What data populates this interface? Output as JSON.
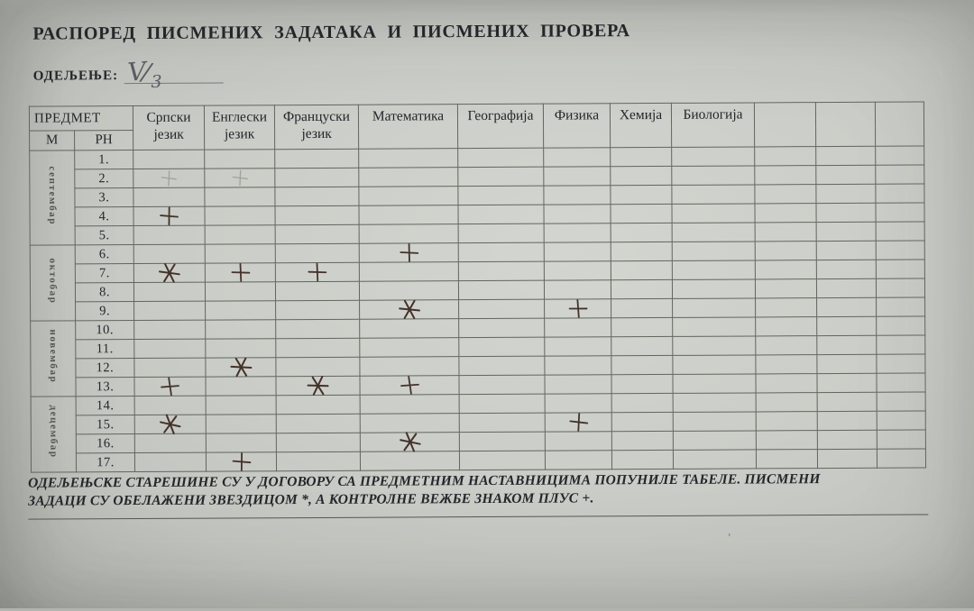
{
  "page": {
    "title": "РАСПОРЕД  ПИСМЕНИХ ЗАДАТАКА И ПИСМЕНИХ  ПРОВЕРА",
    "class_label": "ОДЕЉЕЊЕ:",
    "class_value": "V/3"
  },
  "table": {
    "corner_header": "ПРЕДМЕТ",
    "month_col_header": "М",
    "rownum_col_header": "РН",
    "subjects": [
      "Српски језик",
      "Енглески језик",
      "Француски језик",
      "Математика",
      "Географија",
      "Физика",
      "Хемија",
      "Биологија",
      "",
      "",
      ""
    ],
    "months": [
      {
        "name": "септембар",
        "rows": [
          1,
          2,
          3,
          4,
          5
        ]
      },
      {
        "name": "октобар",
        "rows": [
          6,
          7,
          8,
          9
        ]
      },
      {
        "name": "новембар",
        "rows": [
          10,
          11,
          12,
          13
        ]
      },
      {
        "name": "децембар",
        "rows": [
          14,
          15,
          16,
          17
        ]
      }
    ],
    "row_numbers": [
      "1.",
      "2.",
      "3.",
      "4.",
      "5.",
      "6.",
      "7.",
      "8.",
      "9.",
      "10.",
      "11.",
      "12.",
      "13.",
      "14.",
      "15.",
      "16.",
      "17."
    ],
    "marks": [
      {
        "row": 2,
        "col": 0,
        "subject": "Српски језик",
        "type": "plus",
        "faint": true
      },
      {
        "row": 2,
        "col": 1,
        "subject": "Енглески језик",
        "type": "plus",
        "faint": true
      },
      {
        "row": 4,
        "col": 0,
        "subject": "Српски језик",
        "type": "plus",
        "faint": false
      },
      {
        "row": 6,
        "col": 3,
        "subject": "Математика",
        "type": "plus",
        "faint": false
      },
      {
        "row": 7,
        "col": 0,
        "subject": "Српски језик",
        "type": "star",
        "faint": false
      },
      {
        "row": 7,
        "col": 1,
        "subject": "Енглески језик",
        "type": "plus",
        "faint": false
      },
      {
        "row": 7,
        "col": 2,
        "subject": "Француски језик",
        "type": "plus",
        "faint": false
      },
      {
        "row": 9,
        "col": 3,
        "subject": "Математика",
        "type": "star",
        "faint": false
      },
      {
        "row": 9,
        "col": 5,
        "subject": "Физика",
        "type": "plus",
        "faint": false
      },
      {
        "row": 12,
        "col": 1,
        "subject": "Енглески језик",
        "type": "star",
        "faint": false
      },
      {
        "row": 13,
        "col": 0,
        "subject": "Српски језик",
        "type": "plus",
        "faint": false
      },
      {
        "row": 13,
        "col": 2,
        "subject": "Француски језик",
        "type": "star",
        "faint": false
      },
      {
        "row": 13,
        "col": 3,
        "subject": "Математика",
        "type": "plus",
        "faint": false
      },
      {
        "row": 15,
        "col": 0,
        "subject": "Српски језик",
        "type": "star",
        "faint": false
      },
      {
        "row": 15,
        "col": 5,
        "subject": "Физика",
        "type": "plus",
        "faint": false
      },
      {
        "row": 16,
        "col": 3,
        "subject": "Математика",
        "type": "star",
        "faint": false
      },
      {
        "row": 17,
        "col": 1,
        "subject": "Енглески језик",
        "type": "plus",
        "faint": false
      }
    ]
  },
  "note": {
    "line1": "ОДЕЉЕЊСКЕ СТАРЕШИНЕ СУ У ДОГОВОРУ СА ПРЕДМЕТНИМ НАСТАВНИЦИМА ПОПУНИЛЕ ТАБЕЛЕ. ПИСМЕНИ",
    "line2": "ЗАДАЦИ СУ ОБЕЛАЖЕНИ ЗВЕЗДИЦОМ *, А КОНТРОЛНЕ ВЕЖБЕ ЗНАКОМ  ПЛУС +."
  },
  "stray_mark": "˒",
  "colors": {
    "paper": "#c9cbc5",
    "ink": "#24262a",
    "grid_line": "#63655e",
    "pen_mark": "#44322a",
    "pencil_mark": "#a0a19a",
    "handwriting": "#565d63"
  }
}
